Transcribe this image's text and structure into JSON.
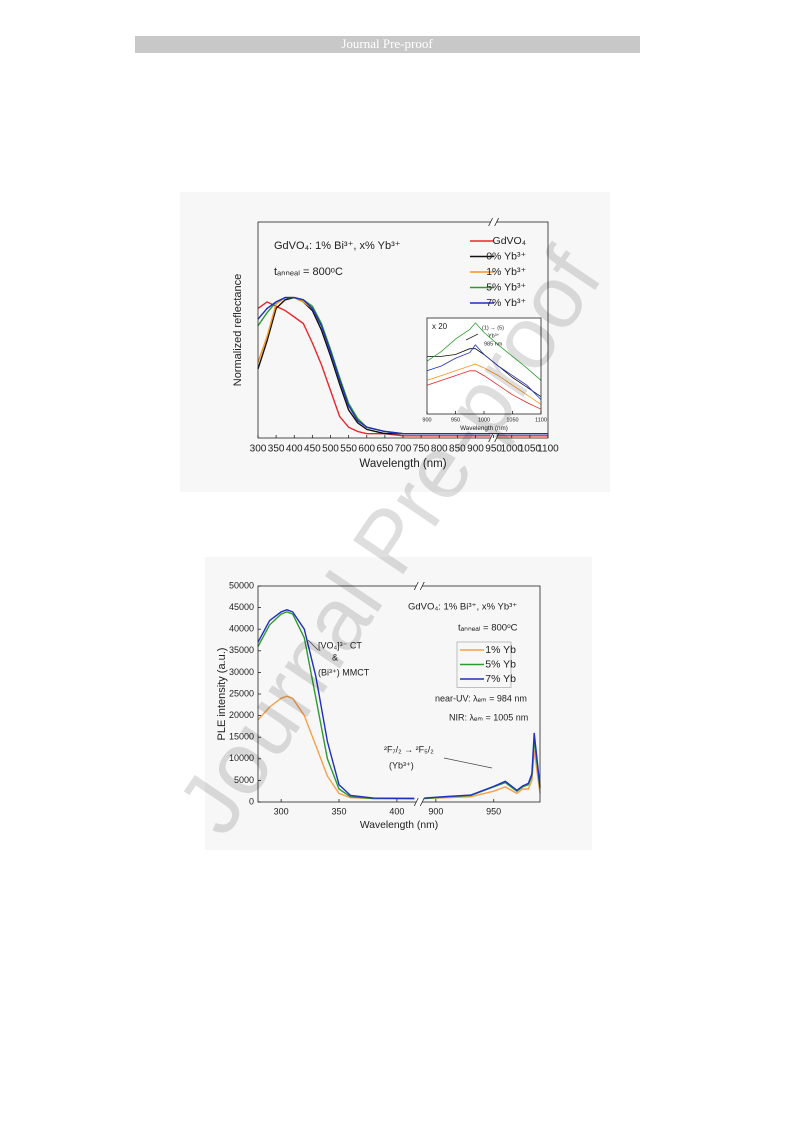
{
  "header": "Journal Pre-proof",
  "watermark": "Journal Pre-proof",
  "chart_data": [
    {
      "type": "line",
      "xlabel": "Wavelength (nm)",
      "ylabel": "Normalized reflectance",
      "annotations": [
        "GdVO₄: 1% Bi³⁺, x% Yb³⁺",
        "tₐₙₙₑₐₗ = 800ᵒC"
      ],
      "x": [
        300,
        325,
        350,
        375,
        400,
        425,
        450,
        475,
        500,
        525,
        550,
        575,
        600,
        650,
        700,
        800,
        900,
        1000,
        1100
      ],
      "xlim": [
        300,
        1100
      ],
      "xticks": [
        300,
        350,
        400,
        450,
        500,
        550,
        600,
        650,
        700,
        750,
        800,
        850,
        900,
        950,
        1000,
        1050,
        1100
      ],
      "ylim": [
        0,
        1
      ],
      "legend": "top-right",
      "series": [
        {
          "name": "GdVO₄",
          "color": "#e8262a",
          "values": [
            0.6,
            0.63,
            0.61,
            0.59,
            0.56,
            0.53,
            0.44,
            0.34,
            0.22,
            0.1,
            0.05,
            0.03,
            0.02,
            0.02,
            0.01,
            0.01,
            0.01,
            0.01,
            0.01
          ]
        },
        {
          "name": "0% Yb³⁺",
          "color": "#111111",
          "values": [
            0.32,
            0.45,
            0.6,
            0.64,
            0.65,
            0.63,
            0.59,
            0.5,
            0.38,
            0.25,
            0.13,
            0.07,
            0.04,
            0.02,
            0.02,
            0.02,
            0.02,
            0.02,
            0.02
          ]
        },
        {
          "name": "1% Yb³⁺",
          "color": "#f7941d",
          "values": [
            0.35,
            0.47,
            0.62,
            0.65,
            0.65,
            0.63,
            0.6,
            0.52,
            0.4,
            0.27,
            0.15,
            0.08,
            0.05,
            0.03,
            0.02,
            0.02,
            0.02,
            0.02,
            0.02
          ]
        },
        {
          "name": "5% Yb³⁺",
          "color": "#2e9b2e",
          "values": [
            0.52,
            0.58,
            0.63,
            0.65,
            0.65,
            0.64,
            0.61,
            0.53,
            0.41,
            0.28,
            0.16,
            0.09,
            0.05,
            0.03,
            0.02,
            0.02,
            0.02,
            0.02,
            0.02
          ]
        },
        {
          "name": "7% Yb³⁺",
          "color": "#1f2fc4",
          "values": [
            0.55,
            0.6,
            0.63,
            0.65,
            0.65,
            0.64,
            0.6,
            0.52,
            0.4,
            0.27,
            0.15,
            0.08,
            0.05,
            0.03,
            0.02,
            0.02,
            0.02,
            0.02,
            0.02
          ]
        }
      ]
    },
    {
      "type": "line",
      "xlabel": "Wavelength (nm)",
      "annotations": [
        "x 20",
        "(1) → (5)",
        "Yb³⁺",
        "985 nm"
      ],
      "x": [
        900,
        925,
        950,
        975,
        985,
        1000,
        1025,
        1050,
        1075,
        1100
      ],
      "xlim": [
        900,
        1100
      ],
      "xticks": [
        900,
        950,
        1000,
        1050,
        1100
      ],
      "ylim": [
        0,
        1
      ],
      "series": [
        {
          "color": "#e8262a",
          "values": [
            0.3,
            0.35,
            0.4,
            0.45,
            0.45,
            0.4,
            0.3,
            0.2,
            0.12,
            0.05
          ]
        },
        {
          "color": "#111111",
          "values": [
            0.6,
            0.6,
            0.62,
            0.68,
            0.68,
            0.62,
            0.5,
            0.38,
            0.28,
            0.18
          ]
        },
        {
          "color": "#f7941d",
          "values": [
            0.35,
            0.4,
            0.45,
            0.5,
            0.52,
            0.48,
            0.4,
            0.3,
            0.2,
            0.1
          ]
        },
        {
          "color": "#2e9b2e",
          "values": [
            0.55,
            0.65,
            0.78,
            0.88,
            0.95,
            0.85,
            0.72,
            0.6,
            0.48,
            0.35
          ]
        },
        {
          "color": "#1f2fc4",
          "values": [
            0.45,
            0.5,
            0.58,
            0.64,
            0.72,
            0.62,
            0.5,
            0.4,
            0.3,
            0.15
          ]
        }
      ]
    },
    {
      "type": "line",
      "xlabel": "Wavelength (nm)",
      "ylabel": "PLE intensity (a.u.)",
      "annotations": [
        "GdVO₄: 1% Bi³⁺, x% Yb³⁺",
        "tₐₙₙₑₐₗ = 800ᵒC",
        "[VO₄]³⁻ CT",
        "&",
        "(Bi³⁺) MMCT",
        "near-UV: λₑₘ = 984 nm",
        "NIR: λₑₘ = 1005 nm",
        "²F₇/₂ → ²F₅/₂",
        "(Yb³⁺)"
      ],
      "x": [
        280,
        290,
        300,
        305,
        310,
        320,
        330,
        340,
        350,
        360,
        380,
        415,
        890,
        910,
        930,
        950,
        960,
        970,
        975,
        980,
        983,
        985,
        990
      ],
      "xlim": [
        [
          280,
          415
        ],
        [
          890,
          990
        ]
      ],
      "xticks": [
        300,
        350,
        400,
        900,
        950
      ],
      "ylim": [
        0,
        50000
      ],
      "yticks": [
        0,
        5000,
        10000,
        15000,
        20000,
        25000,
        30000,
        35000,
        40000,
        45000,
        50000
      ],
      "legend": "right",
      "series": [
        {
          "name": "1% Yb",
          "color": "#f7a04a",
          "values": [
            19000,
            22000,
            24000,
            24500,
            24000,
            20000,
            13000,
            6000,
            2000,
            1000,
            800,
            800,
            800,
            1000,
            1200,
            2500,
            3500,
            2000,
            3000,
            3000,
            5000,
            12000,
            2000
          ]
        },
        {
          "name": "5% Yb",
          "color": "#2e9b2e",
          "values": [
            36000,
            41000,
            43500,
            44000,
            43500,
            38000,
            24000,
            10000,
            3000,
            1200,
            800,
            800,
            800,
            1200,
            1500,
            3500,
            4500,
            2500,
            3500,
            4000,
            6000,
            14500,
            3000
          ]
        },
        {
          "name": "7% Yb",
          "color": "#1f2fc4",
          "values": [
            37000,
            42000,
            44000,
            44500,
            44000,
            40000,
            29000,
            14000,
            4000,
            1500,
            900,
            800,
            900,
            1300,
            1600,
            3600,
            4800,
            2700,
            3700,
            4300,
            6500,
            16000,
            3500
          ]
        }
      ]
    }
  ]
}
